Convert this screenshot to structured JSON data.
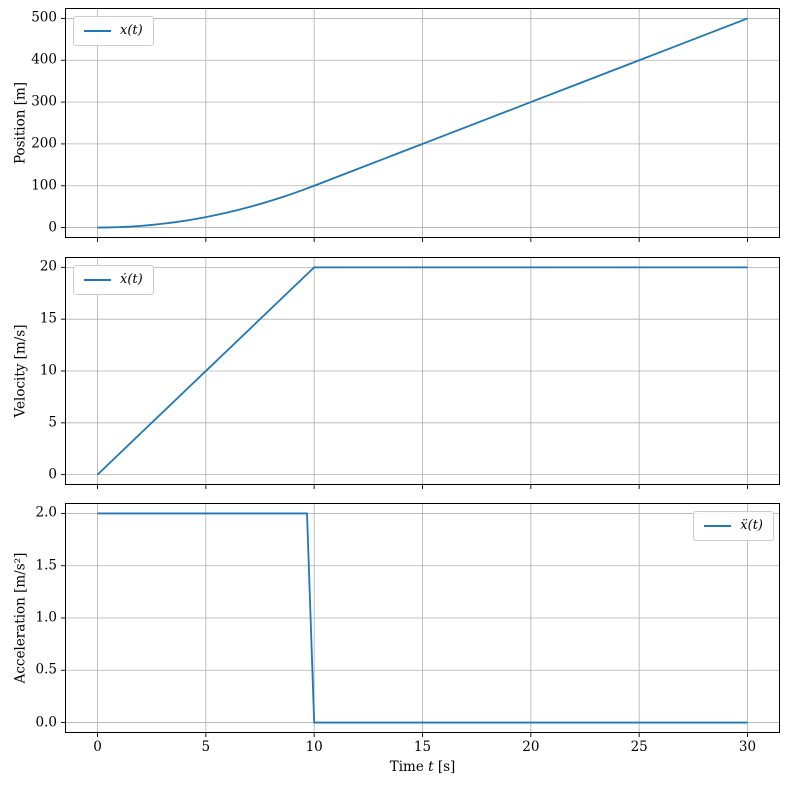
{
  "figure": {
    "background": "#ffffff",
    "accent_color": "#1f77b4",
    "grid_color": "#b0b0b0",
    "spine_color": "#000000",
    "text_color": "#000000"
  },
  "chart_data": [
    {
      "type": "line",
      "title": "",
      "ylabel": "Position [m]",
      "xlabel": "",
      "xlim": [
        -1.5,
        31.5
      ],
      "ylim": [
        -25,
        525
      ],
      "xticks": [
        0,
        5,
        10,
        15,
        20,
        25,
        30
      ],
      "xtick_labels": [],
      "show_xtick_labels": false,
      "yticks": [
        0,
        100,
        200,
        300,
        400,
        500
      ],
      "ytick_labels": [
        "0",
        "100",
        "200",
        "300",
        "400",
        "500"
      ],
      "grid": true,
      "legend": {
        "label": "x(t)",
        "position": "top-left"
      },
      "series": [
        {
          "name": "x(t)",
          "color": "#1f77b4",
          "x": [
            0,
            0.5,
            1,
            1.5,
            2,
            2.5,
            3,
            3.5,
            4,
            4.5,
            5,
            5.5,
            6,
            6.5,
            7,
            7.5,
            8,
            8.5,
            9,
            9.5,
            10,
            12,
            14,
            16,
            18,
            20,
            22,
            24,
            26,
            28,
            30
          ],
          "y": [
            0,
            0.25,
            1,
            2.25,
            4,
            6.25,
            9,
            12.25,
            16,
            20.25,
            25,
            30.25,
            36,
            42.25,
            49,
            56.25,
            64,
            72.25,
            81,
            90.25,
            100,
            140,
            180,
            220,
            260,
            300,
            340,
            380,
            420,
            460,
            500
          ]
        }
      ]
    },
    {
      "type": "line",
      "title": "",
      "ylabel": "Velocity [m/s]",
      "xlabel": "",
      "xlim": [
        -1.5,
        31.5
      ],
      "ylim": [
        -1,
        21
      ],
      "xticks": [
        0,
        5,
        10,
        15,
        20,
        25,
        30
      ],
      "xtick_labels": [],
      "show_xtick_labels": false,
      "yticks": [
        0,
        5,
        10,
        15,
        20
      ],
      "ytick_labels": [
        "0",
        "5",
        "10",
        "15",
        "20"
      ],
      "grid": true,
      "legend": {
        "label": "ẋ(t)",
        "position": "top-left"
      },
      "series": [
        {
          "name": "ẋ(t)",
          "color": "#1f77b4",
          "x": [
            0,
            10,
            30
          ],
          "y": [
            0,
            20,
            20
          ]
        }
      ]
    },
    {
      "type": "line",
      "title": "",
      "ylabel": "Acceleration [m/s²]",
      "xlabel": "Time t [s]",
      "xlabel_parts": [
        {
          "text": "Time ",
          "italic": false
        },
        {
          "text": "t",
          "italic": true
        },
        {
          "text": " [s]",
          "italic": false
        }
      ],
      "xlim": [
        -1.5,
        31.5
      ],
      "ylim": [
        -0.1,
        2.1
      ],
      "xticks": [
        0,
        5,
        10,
        15,
        20,
        25,
        30
      ],
      "xtick_labels": [
        "0",
        "5",
        "10",
        "15",
        "20",
        "25",
        "30"
      ],
      "show_xtick_labels": true,
      "yticks": [
        0,
        0.5,
        1,
        1.5,
        2
      ],
      "ytick_labels": [
        "0.0",
        "0.5",
        "1.0",
        "1.5",
        "2.0"
      ],
      "grid": true,
      "legend": {
        "label": "ẍ(t)",
        "position": "top-right"
      },
      "series": [
        {
          "name": "ẍ(t)",
          "color": "#1f77b4",
          "x": [
            0,
            9.67,
            10,
            30
          ],
          "y": [
            2,
            2,
            0,
            0
          ]
        }
      ]
    }
  ]
}
